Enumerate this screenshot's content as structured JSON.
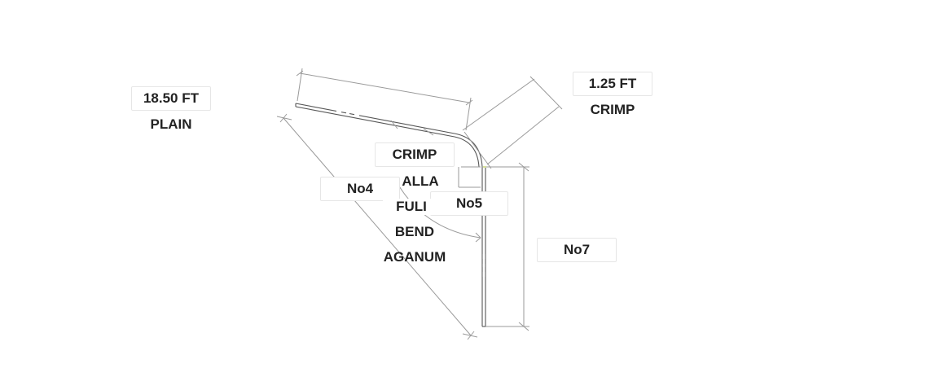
{
  "left_end": {
    "length": "18.50 FT",
    "finish": "PLAIN"
  },
  "right_end": {
    "length": "1.25 FT",
    "finish": "CRIMP"
  },
  "bend": {
    "crimp_label": "CRIMP",
    "note_lines": [
      "ALLA",
      "FULI",
      "BEND",
      "AGANUM"
    ]
  },
  "markers": {
    "no4": "No4",
    "no5": "No5",
    "no7": "No7"
  },
  "colors": {
    "line": "#9a9a9a",
    "pipe": "#555555",
    "text": "#222222"
  }
}
